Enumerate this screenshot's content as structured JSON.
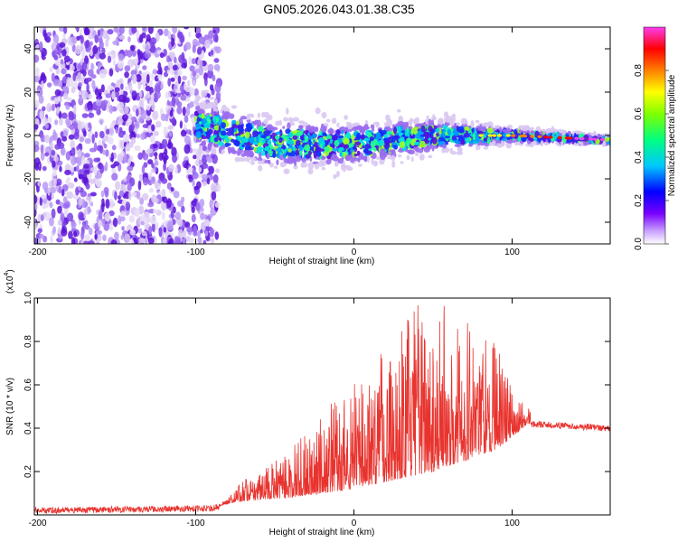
{
  "title": "GN05.2026.043.01.38.C35",
  "colors": {
    "snr_line": "#e8332e",
    "blob_dark": "#5a10d8",
    "blob_light": "#d9c8f2",
    "frame": "#000000"
  },
  "chart_data": [
    {
      "type": "heatmap",
      "title": "GN05.2026.043.01.38.C35",
      "xlabel": "Height of straight line (km)",
      "ylabel": "Frequency (Hz)",
      "xlim": [
        -202,
        162
      ],
      "ylim": [
        -50,
        50
      ],
      "xticks": [
        -200,
        -100,
        0,
        100
      ],
      "xtick_labels": [
        "-200",
        "-100",
        "0",
        "100"
      ],
      "yticks": [
        -40,
        -20,
        0,
        20,
        40
      ],
      "ytick_labels": [
        "-40",
        "-20",
        "0",
        "20",
        "40"
      ],
      "grid": false,
      "colorbar": {
        "label": "Normalized spectral amplitude",
        "range": [
          0,
          1
        ],
        "ticks": [
          0.0,
          0.2,
          0.4,
          0.6,
          0.8
        ],
        "tick_labels": [
          "0.0",
          "0.2",
          "0.4",
          "0.6",
          "0.8"
        ],
        "colormap": [
          "#ffffff",
          "#c8a0ff",
          "#7a00ff",
          "#0000ff",
          "#00c8ff",
          "#00ff80",
          "#80ff00",
          "#ffff00",
          "#ff8000",
          "#ff0000",
          "#ff3cf0"
        ]
      },
      "band": {
        "noise_region_x": [
          -202,
          -85
        ],
        "signal_start_x": -100,
        "center_freq": [
          {
            "x": -100,
            "f": 5
          },
          {
            "x": -50,
            "f": -4
          },
          {
            "x": 0,
            "f": -4
          },
          {
            "x": 50,
            "f": 0
          },
          {
            "x": 100,
            "f": 0
          },
          {
            "x": 160,
            "f": -2
          }
        ],
        "half_width": [
          {
            "x": -100,
            "f": 10
          },
          {
            "x": -30,
            "f": 10
          },
          {
            "x": 50,
            "f": 7
          },
          {
            "x": 100,
            "f": 3
          },
          {
            "x": 160,
            "f": 1.5
          }
        ]
      }
    },
    {
      "type": "line",
      "xlabel": "Height of straight line (km)",
      "ylabel": "SNR (10 * v/v)",
      "scale_label": "(x10",
      "scale_exponent": "4",
      "scale_close": ")",
      "xlim": [
        -202,
        162
      ],
      "ylim": [
        0,
        1.0
      ],
      "xticks": [
        -200,
        -100,
        0,
        100
      ],
      "xtick_labels": [
        "-200",
        "-100",
        "0",
        "100"
      ],
      "yticks": [
        0.2,
        0.4,
        0.6,
        0.8,
        1.0
      ],
      "ytick_labels": [
        "0.2",
        "0.4",
        "0.6",
        "0.8",
        "1.0"
      ],
      "grid": false,
      "series": [
        {
          "name": "SNR",
          "envelope": [
            {
              "x": -202,
              "y": 0.02
            },
            {
              "x": -90,
              "y": 0.03
            },
            {
              "x": -80,
              "y": 0.08
            },
            {
              "x": -70,
              "y": 0.16
            },
            {
              "x": -50,
              "y": 0.25
            },
            {
              "x": -30,
              "y": 0.38
            },
            {
              "x": -10,
              "y": 0.55
            },
            {
              "x": 10,
              "y": 0.72
            },
            {
              "x": 30,
              "y": 0.9
            },
            {
              "x": 45,
              "y": 1.0
            },
            {
              "x": 70,
              "y": 0.95
            },
            {
              "x": 90,
              "y": 0.82
            },
            {
              "x": 100,
              "y": 0.58
            },
            {
              "x": 110,
              "y": 0.5
            },
            {
              "x": 120,
              "y": 0.46
            },
            {
              "x": 162,
              "y": 0.42
            }
          ],
          "baseline": [
            {
              "x": -202,
              "y": 0.02
            },
            {
              "x": -90,
              "y": 0.03
            },
            {
              "x": -75,
              "y": 0.06
            },
            {
              "x": -40,
              "y": 0.08
            },
            {
              "x": 0,
              "y": 0.12
            },
            {
              "x": 50,
              "y": 0.2
            },
            {
              "x": 90,
              "y": 0.3
            },
            {
              "x": 110,
              "y": 0.42
            },
            {
              "x": 162,
              "y": 0.4
            }
          ]
        }
      ]
    }
  ]
}
